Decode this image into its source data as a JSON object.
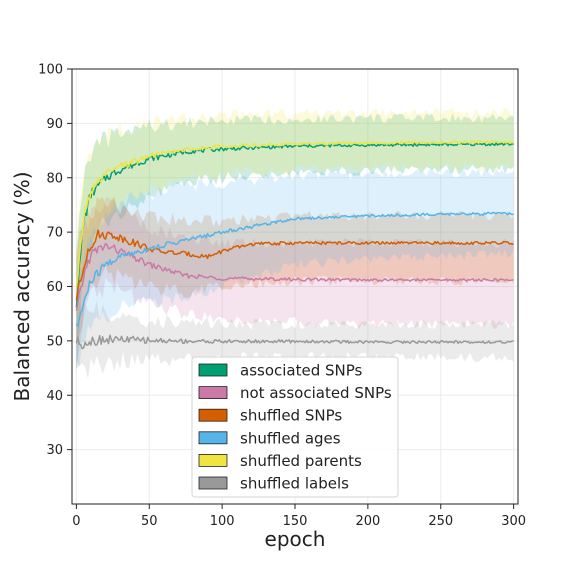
{
  "chart_data": {
    "type": "line",
    "title": "",
    "xlabel": "epoch",
    "ylabel": "Balanced accuracy (%)",
    "xlim": [
      -3,
      303
    ],
    "ylim": [
      20,
      100
    ],
    "xticks": [
      "0",
      "50",
      "100",
      "150",
      "200",
      "250",
      "300"
    ],
    "yticks": [
      "30",
      "40",
      "50",
      "60",
      "70",
      "80",
      "90",
      "100"
    ],
    "grid": true,
    "legend_position": "lower-center",
    "bands_shown": true,
    "series": [
      {
        "name": "associated SNPs",
        "color": "#009E73",
        "points": [
          [
            0,
            57
          ],
          [
            5,
            72
          ],
          [
            10,
            77
          ],
          [
            20,
            80
          ],
          [
            30,
            81.5
          ],
          [
            50,
            83.5
          ],
          [
            75,
            84.8
          ],
          [
            100,
            85.3
          ],
          [
            150,
            85.8
          ],
          [
            200,
            86
          ],
          [
            250,
            86.1
          ],
          [
            300,
            86.2
          ]
        ],
        "band": [
          [
            0,
            46,
            68
          ],
          [
            5,
            62,
            80
          ],
          [
            10,
            67,
            85
          ],
          [
            20,
            72,
            87
          ],
          [
            30,
            74,
            88
          ],
          [
            50,
            76.5,
            89.5
          ],
          [
            75,
            79,
            90
          ],
          [
            100,
            80,
            90.5
          ],
          [
            150,
            81,
            90.8
          ],
          [
            200,
            81.3,
            90.9
          ],
          [
            250,
            81.5,
            91
          ],
          [
            300,
            81.5,
            91
          ]
        ]
      },
      {
        "name": "not associated SNPs",
        "color": "#CC79A7",
        "points": [
          [
            0,
            55
          ],
          [
            5,
            62
          ],
          [
            10,
            66
          ],
          [
            20,
            67.5
          ],
          [
            30,
            66.5
          ],
          [
            50,
            64
          ],
          [
            75,
            62
          ],
          [
            100,
            61.5
          ],
          [
            150,
            61.3
          ],
          [
            200,
            61.2
          ],
          [
            250,
            61.2
          ],
          [
            300,
            61.2
          ]
        ],
        "band": [
          [
            0,
            47,
            63
          ],
          [
            5,
            55,
            70
          ],
          [
            10,
            58,
            74
          ],
          [
            20,
            60,
            75
          ],
          [
            30,
            59,
            74
          ],
          [
            50,
            57,
            71
          ],
          [
            75,
            55,
            69
          ],
          [
            100,
            54,
            68
          ],
          [
            150,
            53.5,
            68
          ],
          [
            200,
            53,
            68
          ],
          [
            250,
            53,
            68
          ],
          [
            300,
            53,
            68
          ]
        ]
      },
      {
        "name": "shuffled SNPs",
        "color": "#D55E00",
        "points": [
          [
            0,
            58
          ],
          [
            3,
            61
          ],
          [
            8,
            67
          ],
          [
            15,
            69.5
          ],
          [
            25,
            69.5
          ],
          [
            40,
            68
          ],
          [
            55,
            66.5
          ],
          [
            75,
            66
          ],
          [
            90,
            65.5
          ],
          [
            100,
            66.5
          ],
          [
            120,
            67.8
          ],
          [
            150,
            68
          ],
          [
            200,
            68
          ],
          [
            250,
            68
          ],
          [
            300,
            68
          ]
        ],
        "band": [
          [
            0,
            50,
            67
          ],
          [
            5,
            56,
            70
          ],
          [
            10,
            60,
            74
          ],
          [
            20,
            62,
            76
          ],
          [
            30,
            62,
            75
          ],
          [
            50,
            60,
            73
          ],
          [
            75,
            59,
            72
          ],
          [
            100,
            60,
            72
          ],
          [
            150,
            61,
            73
          ],
          [
            200,
            61,
            73
          ],
          [
            250,
            61,
            73
          ],
          [
            300,
            61,
            73
          ]
        ]
      },
      {
        "name": "shuffled ages",
        "color": "#56B4E9",
        "points": [
          [
            0,
            52
          ],
          [
            5,
            57
          ],
          [
            10,
            61
          ],
          [
            20,
            64
          ],
          [
            30,
            65.5
          ],
          [
            50,
            67
          ],
          [
            75,
            68.5
          ],
          [
            100,
            70
          ],
          [
            150,
            72.5
          ],
          [
            200,
            73
          ],
          [
            250,
            73.3
          ],
          [
            300,
            73.4
          ]
        ],
        "band": [
          [
            0,
            45,
            60
          ],
          [
            5,
            49,
            65
          ],
          [
            10,
            52,
            70
          ],
          [
            20,
            55,
            73
          ],
          [
            30,
            56,
            75
          ],
          [
            50,
            57,
            77
          ],
          [
            75,
            58,
            78.5
          ],
          [
            100,
            60,
            79
          ],
          [
            150,
            64,
            80.5
          ],
          [
            200,
            65,
            80.5
          ],
          [
            250,
            65.5,
            80.8
          ],
          [
            300,
            66,
            81
          ]
        ]
      },
      {
        "name": "shuffled parents",
        "color": "#F0E442",
        "points": [
          [
            0,
            59
          ],
          [
            5,
            73
          ],
          [
            10,
            77.5
          ],
          [
            20,
            80.5
          ],
          [
            30,
            82
          ],
          [
            50,
            84
          ],
          [
            75,
            85.2
          ],
          [
            100,
            85.8
          ],
          [
            150,
            86.2
          ],
          [
            200,
            86.4
          ],
          [
            250,
            86.5
          ],
          [
            300,
            86.6
          ]
        ],
        "band": [
          [
            0,
            50,
            68
          ],
          [
            5,
            64,
            82
          ],
          [
            10,
            69,
            86
          ],
          [
            20,
            72,
            88
          ],
          [
            30,
            75,
            89
          ],
          [
            50,
            78,
            90
          ],
          [
            75,
            80,
            91
          ],
          [
            100,
            81,
            91.5
          ],
          [
            150,
            81.5,
            91.7
          ],
          [
            200,
            81.8,
            91.8
          ],
          [
            250,
            82,
            92
          ],
          [
            300,
            82,
            92
          ]
        ]
      },
      {
        "name": "shuffled labels",
        "color": "#999999",
        "points": [
          [
            0,
            50
          ],
          [
            3,
            49.5
          ],
          [
            10,
            50
          ],
          [
            20,
            50.3
          ],
          [
            40,
            50.2
          ],
          [
            60,
            50
          ],
          [
            100,
            49.9
          ],
          [
            150,
            49.9
          ],
          [
            200,
            49.8
          ],
          [
            250,
            49.8
          ],
          [
            300,
            49.8
          ]
        ],
        "band": [
          [
            0,
            44,
            57
          ],
          [
            5,
            43.5,
            56.5
          ],
          [
            10,
            45,
            56
          ],
          [
            20,
            46,
            55
          ],
          [
            40,
            46.5,
            54
          ],
          [
            60,
            46.5,
            53.5
          ],
          [
            100,
            46.8,
            53.2
          ],
          [
            150,
            47,
            53
          ],
          [
            200,
            47,
            53
          ],
          [
            250,
            47,
            53
          ],
          [
            300,
            47,
            53
          ]
        ]
      }
    ]
  }
}
